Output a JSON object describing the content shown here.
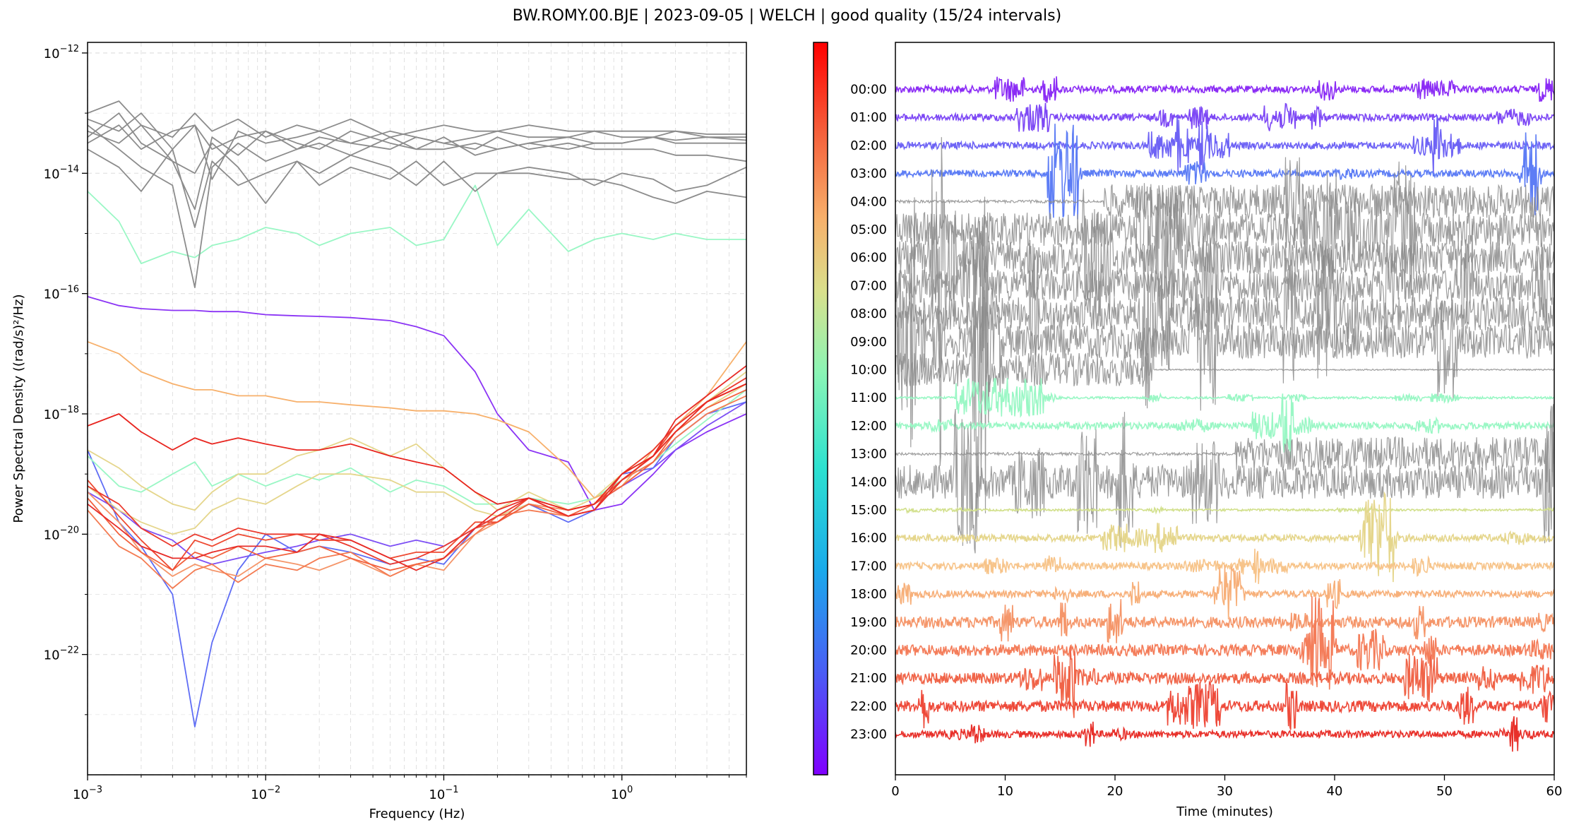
{
  "figure": {
    "title": "BW.ROMY.00.BJE | 2023-09-05 | WELCH | good quality (15/24 intervals)"
  },
  "chart_data": [
    {
      "type": "line",
      "panel": "psd",
      "xlabel": "Frequency (Hz)",
      "ylabel": "Power Spectral Density ((rad/s)²/Hz)",
      "x_scale": "log",
      "y_scale": "log",
      "xlim": [
        0.001,
        5
      ],
      "ylim": [
        1e-24,
        1.5e-12
      ],
      "x_ticks": [
        0.001,
        0.01,
        0.1,
        1
      ],
      "x_tick_labels": [
        [
          "10",
          "−3"
        ],
        [
          "10",
          "−2"
        ],
        [
          "10",
          "−1"
        ],
        [
          "10",
          "0"
        ]
      ],
      "y_ticks": [
        1e-22,
        1e-20,
        1e-18,
        1e-16,
        1e-14,
        1e-12
      ],
      "y_tick_labels": [
        [
          "10",
          "−22"
        ],
        [
          "10",
          "−20"
        ],
        [
          "10",
          "−18"
        ],
        [
          "10",
          "−16"
        ],
        [
          "10",
          "−14"
        ],
        [
          "10",
          "−12"
        ]
      ],
      "grid": true,
      "frequencies": [
        0.001,
        0.0015,
        0.002,
        0.003,
        0.004,
        0.005,
        0.007,
        0.01,
        0.015,
        0.02,
        0.03,
        0.05,
        0.07,
        0.1,
        0.15,
        0.2,
        0.3,
        0.5,
        0.7,
        1,
        1.5,
        2,
        3,
        5
      ],
      "series": [
        {
          "color": "#8b34f5",
          "log10_psd": [
            -16.05,
            -16.2,
            -16.25,
            -16.28,
            -16.28,
            -16.3,
            -16.3,
            -16.35,
            -16.37,
            -16.38,
            -16.4,
            -16.45,
            -16.55,
            -16.7,
            -17.3,
            -18.0,
            -18.6,
            -18.8,
            -19.6,
            -19.5,
            -19.0,
            -18.6,
            -18.3,
            -18.0
          ]
        },
        {
          "color": "#7d4ff5",
          "log10_psd": [
            -19.3,
            -19.6,
            -19.9,
            -20.1,
            -20.4,
            -20.5,
            -20.4,
            -20.3,
            -20.2,
            -20.1,
            -20.0,
            -20.2,
            -20.1,
            -20.2,
            -19.9,
            -19.8,
            -19.5,
            -19.6,
            -19.5,
            -19.2,
            -18.9,
            -18.6,
            -18.2,
            -17.8
          ]
        },
        {
          "color": "#5f6df5",
          "log10_psd": [
            -18.6,
            -19.8,
            -20.2,
            -21.0,
            -23.2,
            -21.8,
            -20.6,
            -20.0,
            -20.3,
            -20.2,
            -20.3,
            -20.5,
            -20.4,
            -20.5,
            -19.9,
            -19.7,
            -19.5,
            -19.8,
            -19.6,
            -19.0,
            -18.9,
            -18.4,
            -18.0,
            -17.8
          ]
        },
        {
          "color": "#9af7c5",
          "log10_psd": [
            -14.3,
            -14.8,
            -15.5,
            -15.3,
            -15.4,
            -15.2,
            -15.1,
            -14.9,
            -15.0,
            -15.2,
            -15.0,
            -14.9,
            -15.2,
            -15.1,
            -14.2,
            -15.2,
            -14.6,
            -15.3,
            -15.1,
            -15.0,
            -15.1,
            -15.0,
            -15.1,
            -15.1
          ]
        },
        {
          "color": "#9af7c5",
          "log10_psd": [
            -18.7,
            -19.2,
            -19.3,
            -19.0,
            -18.8,
            -19.2,
            -19.0,
            -19.2,
            -19.0,
            -19.1,
            -18.9,
            -19.3,
            -19.1,
            -19.2,
            -19.5,
            -19.5,
            -19.4,
            -19.5,
            -19.4,
            -19.1,
            -18.8,
            -18.5,
            -18.1,
            -17.6
          ]
        },
        {
          "color": "#e5d68c",
          "log10_psd": [
            -18.6,
            -18.9,
            -19.2,
            -19.5,
            -19.6,
            -19.3,
            -19.0,
            -19.0,
            -18.7,
            -18.6,
            -18.4,
            -18.7,
            -18.5,
            -18.9,
            -19.3,
            -19.6,
            -19.3,
            -19.6,
            -19.5,
            -19.0,
            -18.6,
            -18.2,
            -17.8,
            -17.3
          ]
        },
        {
          "color": "#e5d68c",
          "log10_psd": [
            -19.2,
            -19.6,
            -19.8,
            -20.0,
            -19.9,
            -19.6,
            -19.4,
            -19.5,
            -19.2,
            -19.0,
            -19.0,
            -19.1,
            -19.3,
            -19.3,
            -19.6,
            -19.7,
            -19.5,
            -19.6,
            -19.4,
            -19.0,
            -18.7,
            -18.3,
            -17.9,
            -17.5
          ]
        },
        {
          "color": "#f7b06b",
          "log10_psd": [
            -16.8,
            -17.0,
            -17.3,
            -17.5,
            -17.6,
            -17.6,
            -17.7,
            -17.7,
            -17.8,
            -17.8,
            -17.85,
            -17.9,
            -17.95,
            -17.95,
            -18.0,
            -18.1,
            -18.3,
            -18.9,
            -19.4,
            -19.2,
            -18.6,
            -18.2,
            -17.7,
            -16.8
          ]
        },
        {
          "color": "#f5966a",
          "log10_psd": [
            -19.3,
            -19.8,
            -20.3,
            -20.7,
            -20.5,
            -20.6,
            -20.7,
            -20.4,
            -20.5,
            -20.6,
            -20.4,
            -20.7,
            -20.5,
            -20.6,
            -20.0,
            -19.8,
            -19.5,
            -19.6,
            -19.5,
            -19.1,
            -18.7,
            -18.2,
            -17.8,
            -17.5
          ]
        },
        {
          "color": "#f47b52",
          "log10_psd": [
            -19.6,
            -20.2,
            -20.4,
            -20.9,
            -20.6,
            -20.5,
            -20.8,
            -20.5,
            -20.6,
            -20.4,
            -20.3,
            -20.7,
            -20.5,
            -20.4,
            -20.0,
            -19.7,
            -19.6,
            -19.7,
            -19.6,
            -19.1,
            -18.8,
            -18.4,
            -18.0,
            -17.7
          ]
        },
        {
          "color": "#f2613d",
          "log10_psd": [
            -19.4,
            -20.0,
            -20.3,
            -20.6,
            -20.3,
            -20.4,
            -20.2,
            -20.4,
            -20.3,
            -20.2,
            -20.4,
            -20.6,
            -20.5,
            -20.4,
            -19.9,
            -19.8,
            -19.5,
            -19.7,
            -19.5,
            -19.2,
            -18.8,
            -18.3,
            -17.9,
            -17.6
          ]
        },
        {
          "color": "#ee4a32",
          "log10_psd": [
            -19.1,
            -19.7,
            -20.1,
            -20.6,
            -20.1,
            -20.2,
            -20.0,
            -20.1,
            -20.0,
            -20.1,
            -20.1,
            -20.4,
            -20.3,
            -20.3,
            -19.8,
            -19.8,
            -19.4,
            -19.6,
            -19.5,
            -19.1,
            -18.7,
            -18.2,
            -17.8,
            -17.5
          ]
        },
        {
          "color": "#eb3a2e",
          "log10_psd": [
            -19.2,
            -19.5,
            -19.9,
            -20.2,
            -20.0,
            -20.1,
            -19.9,
            -20.0,
            -20.0,
            -20.0,
            -20.2,
            -20.5,
            -20.4,
            -20.2,
            -19.9,
            -19.7,
            -19.4,
            -19.7,
            -19.6,
            -19.0,
            -18.6,
            -18.2,
            -17.8,
            -17.4
          ]
        },
        {
          "color": "#e72c28",
          "log10_psd": [
            -19.5,
            -19.9,
            -20.2,
            -20.4,
            -20.4,
            -20.3,
            -20.2,
            -20.2,
            -20.3,
            -20.0,
            -20.1,
            -20.4,
            -20.6,
            -20.4,
            -19.9,
            -19.6,
            -19.4,
            -19.7,
            -19.6,
            -19.1,
            -18.7,
            -18.1,
            -17.7,
            -17.2
          ]
        },
        {
          "color": "#e8251f",
          "log10_psd": [
            -18.2,
            -18.0,
            -18.3,
            -18.6,
            -18.4,
            -18.5,
            -18.4,
            -18.5,
            -18.6,
            -18.6,
            -18.5,
            -18.7,
            -18.8,
            -18.9,
            -19.3,
            -19.5,
            -19.4,
            -19.6,
            -19.5,
            -19.0,
            -18.7,
            -18.3,
            -17.8,
            -17.5
          ]
        },
        {
          "color": "#8c8c8c",
          "log10_psd": [
            -13.0,
            -12.8,
            -13.2,
            -13.4,
            -13.0,
            -13.3,
            -13.1,
            -13.4,
            -13.2,
            -13.3,
            -13.1,
            -13.4,
            -13.3,
            -13.2,
            -13.3,
            -13.3,
            -13.2,
            -13.3,
            -13.3,
            -13.3,
            -13.3,
            -13.3,
            -13.35,
            -13.35
          ]
        },
        {
          "color": "#8c8c8c",
          "log10_psd": [
            -13.4,
            -13.0,
            -13.5,
            -13.8,
            -14.6,
            -13.4,
            -13.7,
            -13.3,
            -13.6,
            -13.4,
            -13.5,
            -13.3,
            -13.4,
            -13.5,
            -13.4,
            -13.3,
            -13.4,
            -13.4,
            -13.3,
            -13.4,
            -13.4,
            -13.3,
            -13.4,
            -13.4
          ]
        },
        {
          "color": "#8c8c8c",
          "log10_psd": [
            -13.2,
            -13.6,
            -13.9,
            -14.2,
            -15.9,
            -13.9,
            -13.5,
            -13.8,
            -13.6,
            -13.5,
            -13.7,
            -13.4,
            -13.6,
            -13.6,
            -13.5,
            -13.6,
            -13.5,
            -13.4,
            -13.5,
            -13.5,
            -13.4,
            -13.45,
            -13.4,
            -13.45
          ]
        },
        {
          "color": "#8c8c8c",
          "log10_psd": [
            -13.3,
            -13.5,
            -13.2,
            -13.8,
            -14.0,
            -13.5,
            -13.9,
            -14.5,
            -13.8,
            -14.0,
            -13.7,
            -13.9,
            -14.2,
            -13.8,
            -14.3,
            -14.0,
            -13.9,
            -14.0,
            -14.2,
            -14.0,
            -14.1,
            -14.3,
            -14.2,
            -13.9
          ]
        },
        {
          "color": "#8c8c8c",
          "log10_psd": [
            -13.6,
            -13.9,
            -14.3,
            -13.6,
            -14.9,
            -13.8,
            -14.2,
            -14.0,
            -13.8,
            -14.2,
            -13.9,
            -14.1,
            -13.8,
            -14.2,
            -14.0,
            -14.0,
            -14.0,
            -14.1,
            -14.1,
            -14.2,
            -14.4,
            -14.5,
            -14.3,
            -14.4
          ]
        },
        {
          "color": "#8c8c8c",
          "log10_psd": [
            -13.5,
            -13.2,
            -13.6,
            -13.3,
            -13.2,
            -13.6,
            -13.4,
            -13.3,
            -13.5,
            -13.6,
            -13.3,
            -13.5,
            -13.6,
            -13.4,
            -13.7,
            -13.6,
            -13.5,
            -13.6,
            -13.5,
            -13.5,
            -13.4,
            -13.5,
            -13.5,
            -13.5
          ]
        },
        {
          "color": "#8c8c8c",
          "log10_psd": [
            -13.1,
            -13.3,
            -13.0,
            -13.6,
            -13.2,
            -14.1,
            -13.3,
            -13.5,
            -13.4,
            -13.3,
            -13.5,
            -13.6,
            -13.4,
            -13.5,
            -13.6,
            -13.4,
            -13.6,
            -13.5,
            -13.6,
            -13.6,
            -13.6,
            -13.7,
            -13.7,
            -13.8
          ]
        }
      ]
    },
    {
      "type": "line",
      "panel": "helicorder",
      "xlabel": "Time (minutes)",
      "xlim": [
        0,
        60
      ],
      "x_ticks": [
        0,
        10,
        20,
        30,
        40,
        50,
        60
      ],
      "grid": false,
      "colorbar": true,
      "hours": [
        "00:00",
        "01:00",
        "02:00",
        "03:00",
        "04:00",
        "05:00",
        "06:00",
        "07:00",
        "08:00",
        "09:00",
        "10:00",
        "11:00",
        "12:00",
        "13:00",
        "14:00",
        "15:00",
        "16:00",
        "17:00",
        "18:00",
        "19:00",
        "20:00",
        "21:00",
        "22:00",
        "23:00"
      ],
      "colors": [
        "#8b2cf5",
        "#7d48f5",
        "#6e63f5",
        "#5d7df5",
        "#8c8c8c",
        "#8c8c8c",
        "#8c8c8c",
        "#8c8c8c",
        "#8c8c8c",
        "#8c8c8c",
        "#8c8c8c",
        "#9af7c5",
        "#9af7c5",
        "#8c8c8c",
        "#8c8c8c",
        "#d2e08c",
        "#e5d68c",
        "#f7c48a",
        "#f7b07a",
        "#f5966a",
        "#f47d5a",
        "#f06448",
        "#ee4a3a",
        "#e8302a"
      ],
      "quality_flag": [
        "good",
        "good",
        "good",
        "good",
        "bad",
        "bad",
        "bad",
        "bad",
        "bad",
        "bad",
        "bad",
        "good",
        "good",
        "bad",
        "bad",
        "good",
        "good",
        "good",
        "good",
        "good",
        "good",
        "good",
        "good",
        "good"
      ]
    }
  ]
}
